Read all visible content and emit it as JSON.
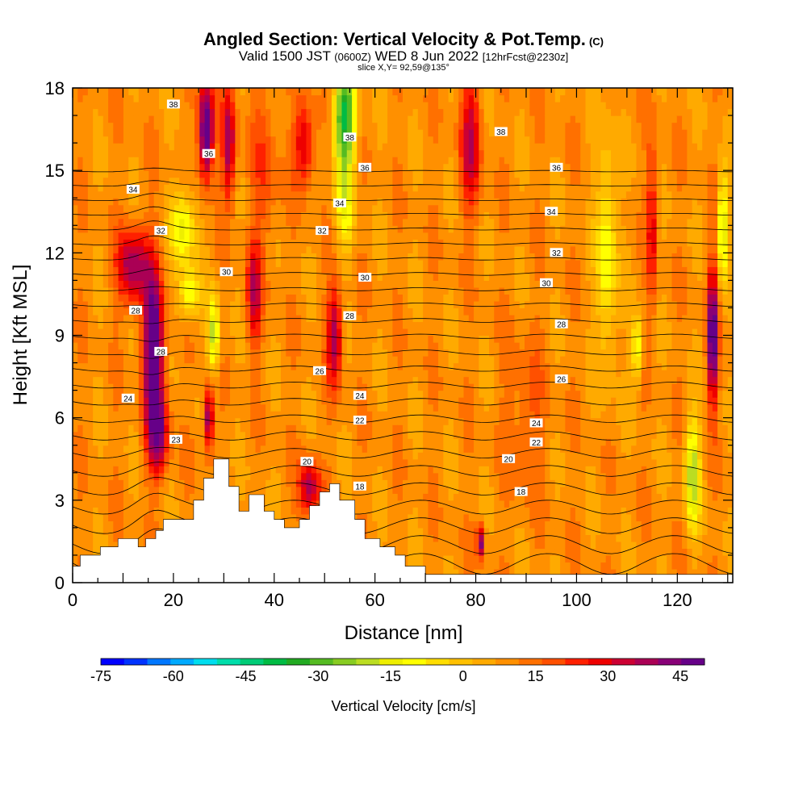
{
  "title": {
    "line1": "Angled Section: Vertical Velocity & Pot.Temp.",
    "line1_suffix": "(C)",
    "line2_a": "Valid 1500 JST",
    "line2_b": "(0600Z)",
    "line2_c": "WED 8 Jun 2022",
    "line2_d": "[12hrFcst@2230z]",
    "line3": "slice X,Y= 92,59@135°"
  },
  "chart_data": {
    "type": "heatmap",
    "xlabel": "Distance [nm]",
    "ylabel": "Height [Kft MSL]",
    "xlim": [
      0,
      131
    ],
    "ylim": [
      0,
      18
    ],
    "x_ticks": [
      0,
      20,
      40,
      60,
      80,
      100,
      120
    ],
    "y_ticks": [
      0,
      3,
      6,
      9,
      12,
      15,
      18
    ],
    "colorbar": {
      "label": "Vertical Velocity [cm/s]",
      "tick_values": [
        -75,
        -60,
        -45,
        -30,
        -15,
        0,
        15,
        30,
        45
      ],
      "range": [
        -75,
        50
      ],
      "colors": [
        "#0000ff",
        "#0033ff",
        "#0077ff",
        "#00aaff",
        "#00ddee",
        "#00ddaa",
        "#00cc77",
        "#00bb44",
        "#22aa22",
        "#55bb22",
        "#88cc22",
        "#bbdd22",
        "#eeee00",
        "#ffff00",
        "#ffdd00",
        "#ffc000",
        "#ffaa00",
        "#ff9000",
        "#ff7000",
        "#ff5000",
        "#ff2000",
        "#ee0000",
        "#cc0033",
        "#aa0055",
        "#880077",
        "#660088"
      ]
    },
    "theta_labels": [
      {
        "x": 20,
        "y": 17.4,
        "text": "38"
      },
      {
        "x": 27,
        "y": 15.6,
        "text": "36"
      },
      {
        "x": 12,
        "y": 14.3,
        "text": "34"
      },
      {
        "x": 17.5,
        "y": 12.8,
        "text": "32"
      },
      {
        "x": 30.5,
        "y": 11.3,
        "text": "30"
      },
      {
        "x": 12.5,
        "y": 9.9,
        "text": "28"
      },
      {
        "x": 17.5,
        "y": 8.4,
        "text": "28"
      },
      {
        "x": 11,
        "y": 6.7,
        "text": "24"
      },
      {
        "x": 20.5,
        "y": 5.2,
        "text": "23"
      },
      {
        "x": 55,
        "y": 16.2,
        "text": "38"
      },
      {
        "x": 58,
        "y": 15.1,
        "text": "36"
      },
      {
        "x": 53,
        "y": 13.8,
        "text": "34"
      },
      {
        "x": 49.5,
        "y": 12.8,
        "text": "32"
      },
      {
        "x": 58,
        "y": 11.1,
        "text": "30"
      },
      {
        "x": 55,
        "y": 9.7,
        "text": "28"
      },
      {
        "x": 49,
        "y": 7.7,
        "text": "26"
      },
      {
        "x": 57,
        "y": 6.8,
        "text": "24"
      },
      {
        "x": 57,
        "y": 5.9,
        "text": "22"
      },
      {
        "x": 46.5,
        "y": 4.4,
        "text": "20"
      },
      {
        "x": 57,
        "y": 3.5,
        "text": "18"
      },
      {
        "x": 85,
        "y": 16.4,
        "text": "38"
      },
      {
        "x": 96,
        "y": 15.1,
        "text": "36"
      },
      {
        "x": 95,
        "y": 13.5,
        "text": "34"
      },
      {
        "x": 96,
        "y": 12.0,
        "text": "32"
      },
      {
        "x": 94,
        "y": 10.9,
        "text": "30"
      },
      {
        "x": 97,
        "y": 9.4,
        "text": "28"
      },
      {
        "x": 97,
        "y": 7.4,
        "text": "26"
      },
      {
        "x": 92,
        "y": 5.8,
        "text": "24"
      },
      {
        "x": 92,
        "y": 5.1,
        "text": "22"
      },
      {
        "x": 86.5,
        "y": 4.5,
        "text": "20"
      },
      {
        "x": 89,
        "y": 3.3,
        "text": "18"
      }
    ]
  }
}
